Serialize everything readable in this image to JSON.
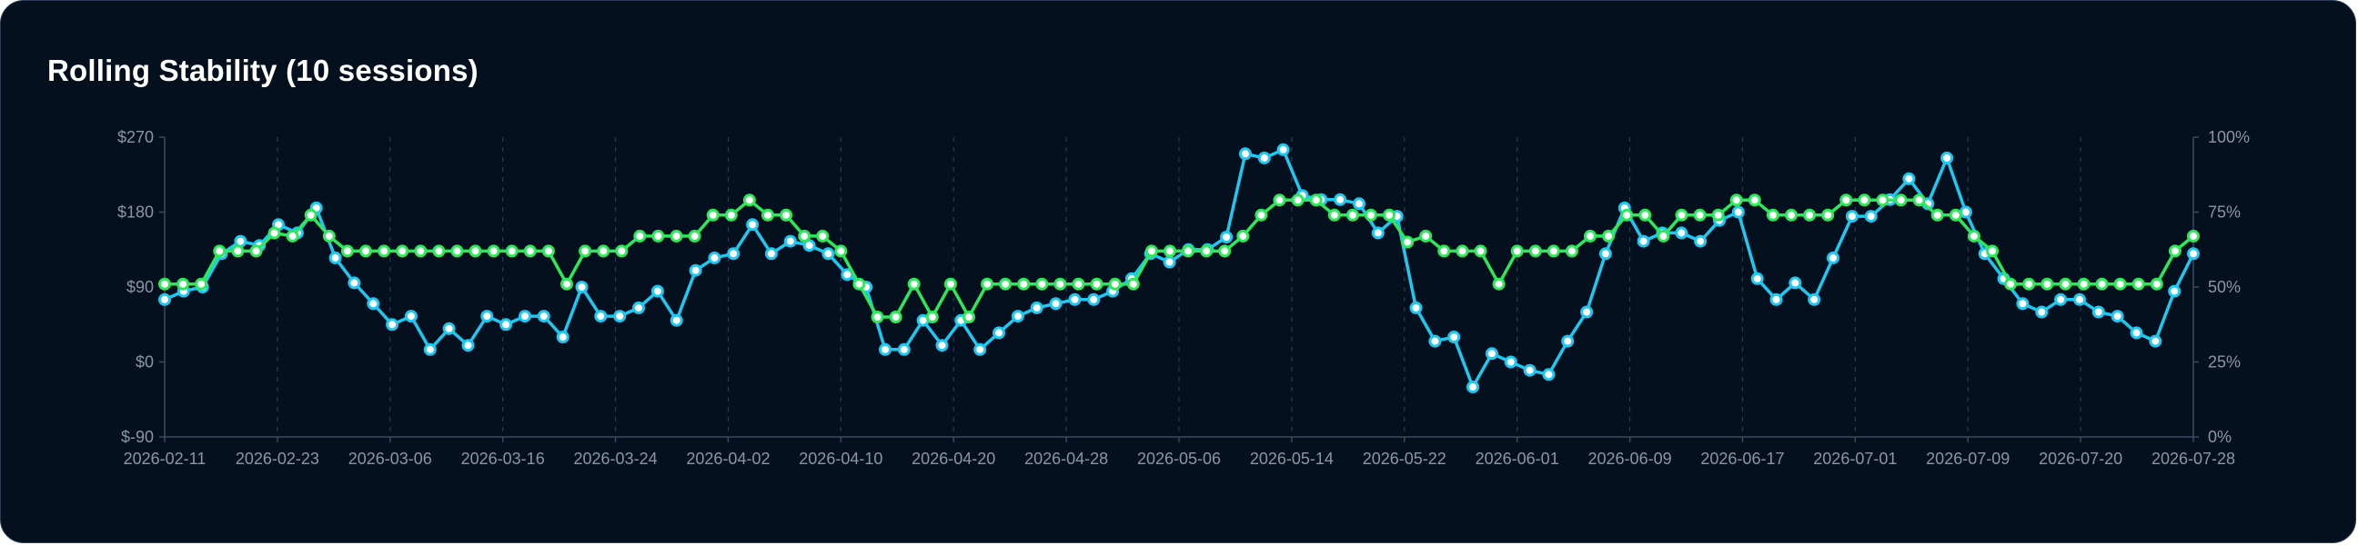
{
  "chart_data": {
    "type": "line",
    "title": "Rolling Stability (10 sessions)",
    "x_ticks": [
      "2026-02-11",
      "2026-02-23",
      "2026-03-06",
      "2026-03-16",
      "2026-03-24",
      "2026-04-02",
      "2026-04-10",
      "2026-04-20",
      "2026-04-28",
      "2026-05-06",
      "2026-05-14",
      "2026-05-22",
      "2026-06-01",
      "2026-06-09",
      "2026-06-17",
      "2026-07-01",
      "2026-07-09",
      "2026-07-20",
      "2026-07-28"
    ],
    "y_left": {
      "ticks": [
        "$270",
        "$180",
        "$90",
        "$0",
        "$-90"
      ],
      "range": [
        -90,
        270
      ]
    },
    "y_right": {
      "ticks": [
        "100%",
        "75%",
        "50%",
        "25%",
        "0%"
      ],
      "range": [
        0,
        100
      ]
    },
    "grid": "vertical dashed",
    "colors": {
      "blue": "#1ec8f0",
      "green": "#2ee85a"
    },
    "series": [
      {
        "axis": "left",
        "color": "#1ec8f0",
        "values": [
          75,
          85,
          90,
          130,
          145,
          140,
          165,
          155,
          185,
          125,
          95,
          70,
          45,
          55,
          15,
          40,
          20,
          55,
          45,
          55,
          55,
          30,
          90,
          55,
          55,
          65,
          85,
          50,
          110,
          125,
          130,
          165,
          130,
          145,
          140,
          130,
          105,
          90,
          15,
          15,
          50,
          20,
          50,
          15,
          35,
          55,
          65,
          70,
          75,
          75,
          85,
          100,
          130,
          120,
          135,
          135,
          150,
          250,
          245,
          255,
          200,
          195,
          195,
          190,
          155,
          175,
          65,
          25,
          30,
          -30,
          10,
          0,
          -10,
          -15,
          25,
          60,
          130,
          185,
          145,
          155,
          155,
          145,
          170,
          180,
          100,
          75,
          95,
          75,
          125,
          175,
          175,
          195,
          220,
          190,
          245,
          180,
          130,
          100,
          70,
          60,
          75,
          75,
          60,
          55,
          35,
          25,
          85,
          130
        ]
      },
      {
        "axis": "right",
        "color": "#2ee85a",
        "values": [
          51,
          51,
          51,
          62,
          62,
          62,
          68,
          67,
          74,
          67,
          62,
          62,
          62,
          62,
          62,
          62,
          62,
          62,
          62,
          62,
          62,
          62,
          51,
          62,
          62,
          62,
          67,
          67,
          67,
          67,
          74,
          74,
          79,
          74,
          74,
          67,
          67,
          62,
          51,
          40,
          40,
          51,
          40,
          51,
          40,
          51,
          51,
          51,
          51,
          51,
          51,
          51,
          51,
          51,
          62,
          62,
          62,
          62,
          62,
          67,
          74,
          79,
          79,
          79,
          74,
          74,
          74,
          74,
          65,
          67,
          62,
          62,
          62,
          51,
          62,
          62,
          62,
          62,
          67,
          67,
          74,
          74,
          67,
          74,
          74,
          74,
          79,
          79,
          74,
          74,
          74,
          74,
          79,
          79,
          79,
          79,
          79,
          74,
          74,
          67,
          62,
          51,
          51,
          51,
          51,
          51,
          51,
          51,
          51,
          51,
          62,
          67
        ]
      }
    ]
  }
}
